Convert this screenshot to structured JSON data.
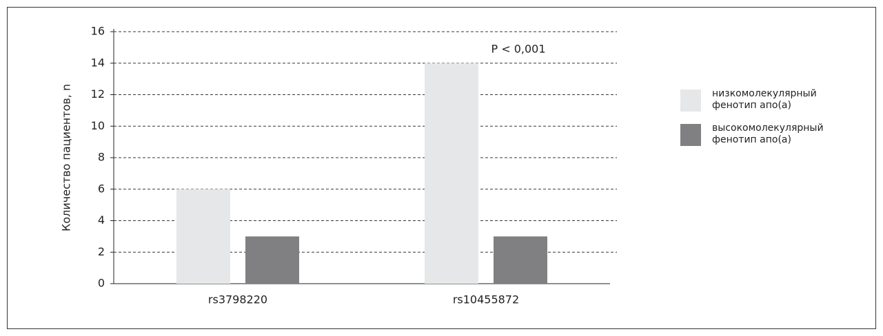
{
  "chart_data": {
    "type": "bar",
    "y_label": "Количество пациентов, n",
    "annotation": "P < 0,001",
    "categories": [
      "rs3798220",
      "rs10455872"
    ],
    "series": [
      {
        "name": "низкомолекулярный фенотип апо(а)",
        "color": "#e6e7e8",
        "values": [
          6,
          14
        ]
      },
      {
        "name": "высокомолекулярный фенотип апо(а)",
        "color": "#808083",
        "values": [
          3,
          3
        ]
      }
    ],
    "ylim": [
      0,
      16
    ],
    "yticks": [
      0,
      2,
      4,
      6,
      8,
      10,
      12,
      14,
      16
    ],
    "grid": true,
    "legend": "right"
  }
}
